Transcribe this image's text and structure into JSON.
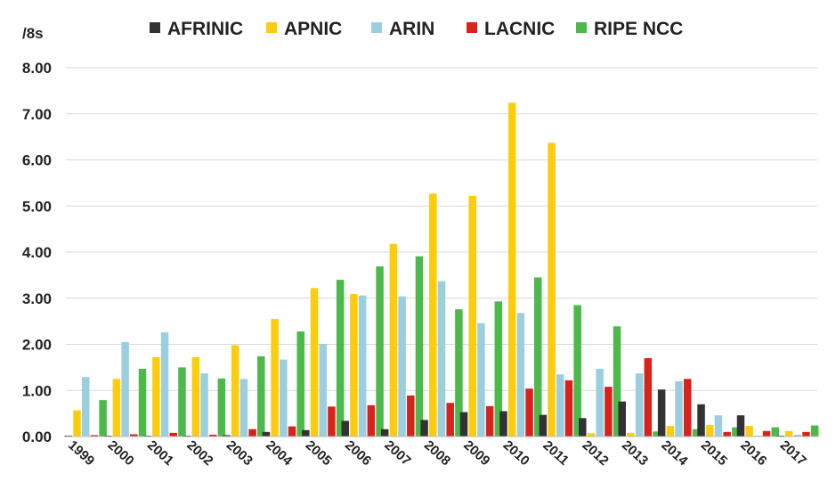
{
  "chart_data": {
    "type": "bar",
    "y_unit_label": "/8s",
    "ylim": [
      0,
      8
    ],
    "yticks": [
      "0.00",
      "1.00",
      "2.00",
      "3.00",
      "4.00",
      "5.00",
      "6.00",
      "7.00",
      "8.00"
    ],
    "grid": true,
    "legend_position": "top",
    "categories": [
      "1999",
      "2000",
      "2001",
      "2002",
      "2003",
      "2004",
      "2005",
      "2006",
      "2007",
      "2008",
      "2009",
      "2010",
      "2011",
      "2012",
      "2013",
      "2014",
      "2015",
      "2016",
      "2017"
    ],
    "series": [
      {
        "name": "AFRINIC",
        "color": "#333333",
        "values": [
          0.02,
          0.02,
          0.02,
          0.02,
          0.03,
          0.1,
          0.14,
          0.34,
          0.16,
          0.36,
          0.53,
          0.55,
          0.47,
          0.4,
          0.76,
          1.02,
          0.7,
          0.46,
          0.02
        ]
      },
      {
        "name": "APNIC",
        "color": "#fccc0d",
        "values": [
          0.57,
          1.25,
          1.72,
          1.72,
          1.98,
          2.55,
          3.22,
          3.09,
          4.18,
          5.27,
          5.22,
          7.24,
          6.37,
          0.07,
          0.08,
          0.23,
          0.25,
          0.23,
          0.12
        ]
      },
      {
        "name": "ARIN",
        "color": "#9bcfe0",
        "values": [
          1.29,
          2.05,
          2.26,
          1.37,
          1.25,
          1.67,
          2.01,
          3.06,
          3.04,
          3.37,
          2.46,
          2.68,
          1.35,
          1.47,
          1.37,
          1.2,
          0.46,
          0.02,
          0.04
        ]
      },
      {
        "name": "LACNIC",
        "color": "#d9221c",
        "values": [
          0.03,
          0.05,
          0.08,
          0.04,
          0.16,
          0.22,
          0.65,
          0.68,
          0.89,
          0.73,
          0.66,
          1.04,
          1.22,
          1.08,
          1.7,
          1.25,
          0.1,
          0.12,
          0.1
        ]
      },
      {
        "name": "RIPE NCC",
        "color": "#4cb94a",
        "values": [
          0.79,
          1.47,
          1.5,
          1.26,
          1.74,
          2.28,
          3.4,
          3.69,
          3.91,
          2.76,
          2.93,
          3.45,
          2.85,
          2.39,
          0.11,
          0.16,
          0.2,
          0.2,
          0.24
        ]
      }
    ]
  }
}
